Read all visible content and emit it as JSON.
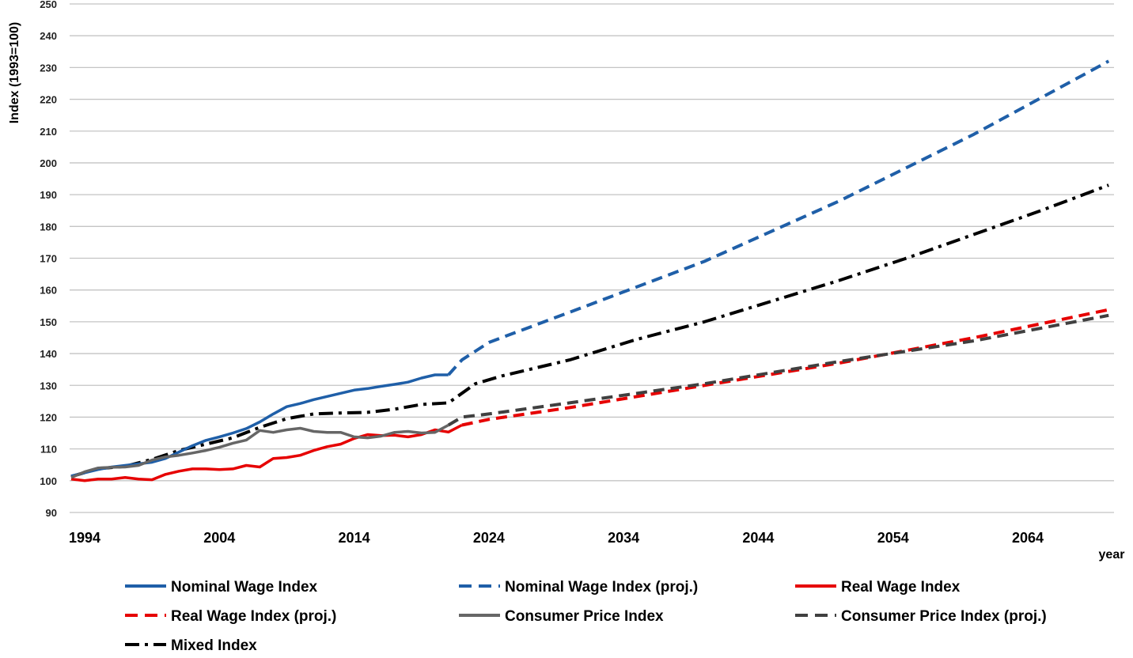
{
  "chart_data": {
    "type": "line",
    "title": "",
    "xlabel": "year",
    "ylabel": "Index (1993=100)",
    "xlim": [
      1993,
      2071
    ],
    "ylim": [
      90,
      250
    ],
    "y_ticks": [
      90,
      100,
      110,
      120,
      130,
      140,
      150,
      160,
      170,
      180,
      190,
      200,
      210,
      220,
      230,
      240,
      250
    ],
    "x_ticks": [
      1994,
      2004,
      2014,
      2024,
      2034,
      2044,
      2054,
      2064
    ],
    "grid": "horizontal",
    "legend_position": "bottom",
    "series": [
      {
        "name": "Nominal Wage Index",
        "color": "#1f5fa8",
        "dash": "solid",
        "points": [
          [
            1993,
            101.5
          ],
          [
            1994,
            102.5
          ],
          [
            1995,
            103.5
          ],
          [
            1996,
            104.3
          ],
          [
            1997,
            104.8
          ],
          [
            1998,
            105.3
          ],
          [
            1999,
            105.8
          ],
          [
            2000,
            107
          ],
          [
            2001,
            109
          ],
          [
            2002,
            111
          ],
          [
            2003,
            112.7
          ],
          [
            2004,
            113.8
          ],
          [
            2005,
            115
          ],
          [
            2006,
            116.4
          ],
          [
            2007,
            118.5
          ],
          [
            2008,
            121
          ],
          [
            2009,
            123.3
          ],
          [
            2010,
            124.3
          ],
          [
            2011,
            125.5
          ],
          [
            2012,
            126.5
          ],
          [
            2013,
            127.5
          ],
          [
            2014,
            128.5
          ],
          [
            2015,
            129
          ],
          [
            2016,
            129.7
          ],
          [
            2017,
            130.3
          ],
          [
            2018,
            131
          ],
          [
            2019,
            132.3
          ],
          [
            2020,
            133.3
          ],
          [
            2021,
            133.3
          ]
        ]
      },
      {
        "name": "Nominal Wage Index (proj.)",
        "color": "#1f5fa8",
        "dash": "dash",
        "points": [
          [
            2021,
            133.3
          ],
          [
            2022,
            138
          ],
          [
            2024,
            143.5
          ],
          [
            2030,
            153
          ],
          [
            2040,
            169
          ],
          [
            2050,
            188
          ],
          [
            2060,
            209
          ],
          [
            2070,
            232
          ]
        ]
      },
      {
        "name": "Real Wage Index",
        "color": "#e60000",
        "dash": "solid",
        "points": [
          [
            1993,
            100.5
          ],
          [
            1994,
            100
          ],
          [
            1995,
            100.5
          ],
          [
            1996,
            100.5
          ],
          [
            1997,
            101
          ],
          [
            1998,
            100.5
          ],
          [
            1999,
            100.3
          ],
          [
            2000,
            102
          ],
          [
            2001,
            103
          ],
          [
            2002,
            103.7
          ],
          [
            2003,
            103.7
          ],
          [
            2004,
            103.5
          ],
          [
            2005,
            103.7
          ],
          [
            2006,
            104.8
          ],
          [
            2007,
            104.3
          ],
          [
            2008,
            107
          ],
          [
            2009,
            107.3
          ],
          [
            2010,
            108
          ],
          [
            2011,
            109.5
          ],
          [
            2012,
            110.7
          ],
          [
            2013,
            111.5
          ],
          [
            2014,
            113.3
          ],
          [
            2015,
            114.5
          ],
          [
            2016,
            114.2
          ],
          [
            2017,
            114.3
          ],
          [
            2018,
            113.8
          ],
          [
            2019,
            114.5
          ],
          [
            2020,
            116
          ],
          [
            2021,
            115.3
          ],
          [
            2022,
            117.5
          ]
        ]
      },
      {
        "name": "Real Wage Index  (proj.)",
        "color": "#e60000",
        "dash": "dash",
        "points": [
          [
            2022,
            117.5
          ],
          [
            2024,
            119.3
          ],
          [
            2030,
            123
          ],
          [
            2040,
            130
          ],
          [
            2050,
            137
          ],
          [
            2060,
            145
          ],
          [
            2070,
            153.8
          ]
        ]
      },
      {
        "name": "Consumer Price Index",
        "color": "#666666",
        "dash": "solid",
        "points": [
          [
            1993,
            101
          ],
          [
            1994,
            102.8
          ],
          [
            1995,
            104
          ],
          [
            1996,
            104.2
          ],
          [
            1997,
            104.3
          ],
          [
            1998,
            104.8
          ],
          [
            1999,
            106.5
          ],
          [
            2000,
            107.5
          ],
          [
            2001,
            108
          ],
          [
            2002,
            108.7
          ],
          [
            2003,
            109.5
          ],
          [
            2004,
            110.5
          ],
          [
            2005,
            111.8
          ],
          [
            2006,
            112.8
          ],
          [
            2007,
            115.8
          ],
          [
            2008,
            115.2
          ],
          [
            2009,
            116
          ],
          [
            2010,
            116.5
          ],
          [
            2011,
            115.5
          ],
          [
            2012,
            115.2
          ],
          [
            2013,
            115.2
          ],
          [
            2014,
            113.8
          ],
          [
            2015,
            113.5
          ],
          [
            2016,
            114
          ],
          [
            2017,
            115.2
          ],
          [
            2018,
            115.5
          ],
          [
            2019,
            115
          ],
          [
            2020,
            115.2
          ],
          [
            2021,
            117.5
          ]
        ]
      },
      {
        "name": "Consumer Price Index  (proj.)",
        "color": "#404040",
        "dash": "dash",
        "points": [
          [
            2021,
            117.5
          ],
          [
            2022,
            120
          ],
          [
            2024,
            121
          ],
          [
            2030,
            124.5
          ],
          [
            2040,
            130.5
          ],
          [
            2050,
            137.5
          ],
          [
            2060,
            144
          ],
          [
            2070,
            152
          ]
        ]
      },
      {
        "name": "Mixed Index",
        "color": "#000000",
        "dash": "dashdot",
        "points": [
          [
            1993,
            101.3
          ],
          [
            1995,
            103.8
          ],
          [
            1997,
            104.5
          ],
          [
            1999,
            106.7
          ],
          [
            2001,
            109.5
          ],
          [
            2003,
            111.5
          ],
          [
            2005,
            113.5
          ],
          [
            2007,
            116.8
          ],
          [
            2009,
            119.5
          ],
          [
            2011,
            121
          ],
          [
            2013,
            121.3
          ],
          [
            2015,
            121.5
          ],
          [
            2017,
            122.5
          ],
          [
            2019,
            124
          ],
          [
            2021,
            124.5
          ],
          [
            2023,
            130.5
          ],
          [
            2025,
            133
          ],
          [
            2030,
            138
          ],
          [
            2035,
            144.5
          ],
          [
            2040,
            150
          ],
          [
            2045,
            156.5
          ],
          [
            2050,
            163
          ],
          [
            2055,
            170
          ],
          [
            2060,
            177.5
          ],
          [
            2065,
            185
          ],
          [
            2070,
            193
          ]
        ]
      }
    ]
  }
}
